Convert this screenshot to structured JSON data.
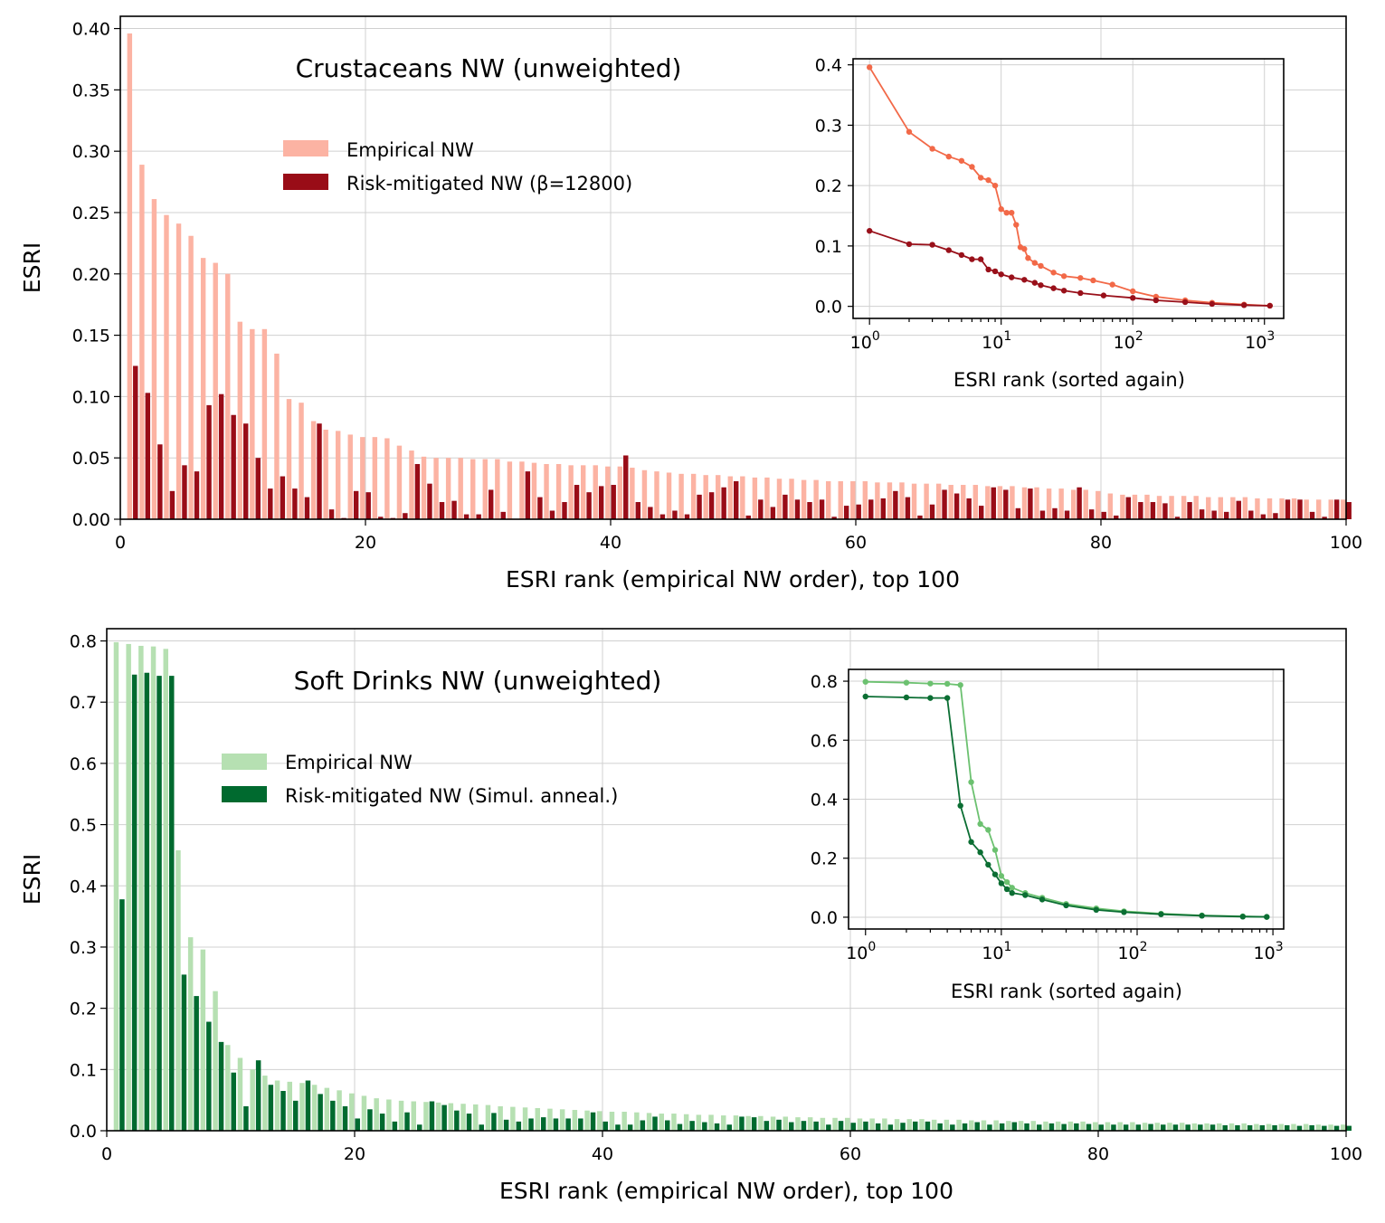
{
  "chart_data": [
    {
      "type": "bar",
      "title": "Crustaceans NW (unweighted)",
      "xlabel": "ESRI rank (empirical NW order), top 100",
      "ylabel": "ESRI",
      "xlim": [
        0,
        100
      ],
      "ylim": [
        0,
        0.41
      ],
      "xticks": [
        "0",
        "20",
        "40",
        "60",
        "80",
        "100"
      ],
      "yticks": [
        "0.00",
        "0.05",
        "0.10",
        "0.15",
        "0.20",
        "0.25",
        "0.30",
        "0.35",
        "0.40"
      ],
      "grid": true,
      "legend_position": "upper-left",
      "colors": {
        "empirical": "#fcb3a3",
        "mitigated": "#990c17",
        "inset_empirical": "#f26948",
        "inset_mitigated": "#99101a"
      },
      "series": [
        {
          "name": "Empirical NW",
          "values": [
            0.396,
            0.289,
            0.261,
            0.248,
            0.241,
            0.231,
            0.213,
            0.209,
            0.2,
            0.161,
            0.155,
            0.155,
            0.135,
            0.098,
            0.095,
            0.08,
            0.073,
            0.072,
            0.069,
            0.067,
            0.067,
            0.066,
            0.06,
            0.056,
            0.051,
            0.05,
            0.05,
            0.05,
            0.049,
            0.049,
            0.049,
            0.047,
            0.047,
            0.046,
            0.045,
            0.045,
            0.044,
            0.044,
            0.044,
            0.043,
            0.043,
            0.042,
            0.04,
            0.039,
            0.038,
            0.037,
            0.037,
            0.036,
            0.036,
            0.035,
            0.035,
            0.034,
            0.034,
            0.033,
            0.033,
            0.032,
            0.032,
            0.031,
            0.031,
            0.031,
            0.031,
            0.03,
            0.03,
            0.03,
            0.029,
            0.029,
            0.029,
            0.028,
            0.028,
            0.028,
            0.027,
            0.027,
            0.027,
            0.026,
            0.026,
            0.025,
            0.025,
            0.024,
            0.024,
            0.023,
            0.021,
            0.02,
            0.02,
            0.02,
            0.019,
            0.019,
            0.019,
            0.019,
            0.018,
            0.018,
            0.018,
            0.018,
            0.017,
            0.017,
            0.017,
            0.017,
            0.016,
            0.016,
            0.016,
            0.016
          ]
        },
        {
          "name": "Risk-mitigated NW (β=12800)",
          "values": [
            0.125,
            0.103,
            0.061,
            0.023,
            0.044,
            0.039,
            0.093,
            0.102,
            0.085,
            0.078,
            0.05,
            0.025,
            0.035,
            0.025,
            0.018,
            0.078,
            0.008,
            0.001,
            0.023,
            0.022,
            0.002,
            0.001,
            0.005,
            0.045,
            0.029,
            0.014,
            0.015,
            0.004,
            0.004,
            0.024,
            0.006,
            0.0,
            0.039,
            0.018,
            0.007,
            0.014,
            0.028,
            0.022,
            0.027,
            0.028,
            0.052,
            0.014,
            0.01,
            0.004,
            0.007,
            0.004,
            0.02,
            0.022,
            0.026,
            0.031,
            0.003,
            0.016,
            0.01,
            0.02,
            0.016,
            0.014,
            0.016,
            0.002,
            0.011,
            0.012,
            0.016,
            0.017,
            0.023,
            0.018,
            0.003,
            0.012,
            0.024,
            0.021,
            0.017,
            0.011,
            0.026,
            0.024,
            0.009,
            0.025,
            0.007,
            0.009,
            0.007,
            0.026,
            0.008,
            0.006,
            0.003,
            0.018,
            0.014,
            0.014,
            0.013,
            0.002,
            0.014,
            0.008,
            0.007,
            0.006,
            0.015,
            0.007,
            0.004,
            0.005,
            0.016,
            0.016,
            0.006,
            0.002,
            0.016,
            0.014
          ]
        }
      ],
      "inset": {
        "xlabel": "ESRI rank (sorted again)",
        "xscale": "log",
        "xlim": [
          0.75,
          1400
        ],
        "ylim": [
          -0.02,
          0.41
        ],
        "yticks": [
          "0.0",
          "0.1",
          "0.2",
          "0.3",
          "0.4"
        ],
        "xticks": [
          "10^0",
          "10^1",
          "10^2",
          "10^3"
        ],
        "empirical_points": [
          [
            1,
            0.396
          ],
          [
            2,
            0.289
          ],
          [
            3,
            0.261
          ],
          [
            4,
            0.248
          ],
          [
            5,
            0.241
          ],
          [
            6,
            0.231
          ],
          [
            7,
            0.213
          ],
          [
            8,
            0.209
          ],
          [
            9,
            0.2
          ],
          [
            10,
            0.161
          ],
          [
            11,
            0.155
          ],
          [
            12,
            0.155
          ],
          [
            13,
            0.135
          ],
          [
            14,
            0.098
          ],
          [
            15,
            0.095
          ],
          [
            16,
            0.08
          ],
          [
            18,
            0.072
          ],
          [
            20,
            0.067
          ],
          [
            25,
            0.056
          ],
          [
            30,
            0.05
          ],
          [
            40,
            0.047
          ],
          [
            50,
            0.043
          ],
          [
            70,
            0.036
          ],
          [
            100,
            0.025
          ],
          [
            150,
            0.016
          ],
          [
            250,
            0.01
          ],
          [
            400,
            0.006
          ],
          [
            700,
            0.003
          ],
          [
            1100,
            0.001
          ]
        ],
        "mitigated_points": [
          [
            1,
            0.125
          ],
          [
            2,
            0.103
          ],
          [
            3,
            0.102
          ],
          [
            4,
            0.093
          ],
          [
            5,
            0.085
          ],
          [
            6,
            0.078
          ],
          [
            7,
            0.078
          ],
          [
            8,
            0.061
          ],
          [
            9,
            0.058
          ],
          [
            10,
            0.053
          ],
          [
            12,
            0.048
          ],
          [
            15,
            0.044
          ],
          [
            18,
            0.039
          ],
          [
            20,
            0.035
          ],
          [
            25,
            0.03
          ],
          [
            30,
            0.026
          ],
          [
            40,
            0.022
          ],
          [
            60,
            0.018
          ],
          [
            100,
            0.014
          ],
          [
            150,
            0.01
          ],
          [
            250,
            0.007
          ],
          [
            400,
            0.004
          ],
          [
            700,
            0.002
          ],
          [
            1100,
            0.001
          ]
        ]
      }
    },
    {
      "type": "bar",
      "title": "Soft Drinks NW (unweighted)",
      "xlabel": "ESRI rank (empirical NW order), top 100",
      "ylabel": "ESRI",
      "xlim": [
        0,
        100
      ],
      "ylim": [
        0,
        0.82
      ],
      "xticks": [
        "0",
        "20",
        "40",
        "60",
        "80",
        "100"
      ],
      "yticks": [
        "0.0",
        "0.1",
        "0.2",
        "0.3",
        "0.4",
        "0.5",
        "0.6",
        "0.7",
        "0.8"
      ],
      "grid": true,
      "legend_position": "upper-left",
      "colors": {
        "empirical": "#b6e0b2",
        "mitigated": "#006a2f",
        "inset_empirical": "#6cc170",
        "inset_mitigated": "#0b6e33"
      },
      "series": [
        {
          "name": "Empirical NW",
          "values": [
            0.798,
            0.795,
            0.792,
            0.791,
            0.787,
            0.458,
            0.316,
            0.296,
            0.228,
            0.14,
            0.119,
            0.1,
            0.09,
            0.082,
            0.08,
            0.078,
            0.075,
            0.07,
            0.066,
            0.061,
            0.057,
            0.053,
            0.051,
            0.049,
            0.048,
            0.047,
            0.046,
            0.045,
            0.044,
            0.043,
            0.042,
            0.04,
            0.039,
            0.038,
            0.037,
            0.036,
            0.035,
            0.034,
            0.033,
            0.032,
            0.031,
            0.031,
            0.03,
            0.029,
            0.028,
            0.028,
            0.027,
            0.026,
            0.026,
            0.025,
            0.025,
            0.024,
            0.024,
            0.023,
            0.023,
            0.022,
            0.022,
            0.021,
            0.021,
            0.021,
            0.02,
            0.02,
            0.02,
            0.019,
            0.019,
            0.019,
            0.018,
            0.018,
            0.018,
            0.017,
            0.017,
            0.017,
            0.016,
            0.016,
            0.016,
            0.015,
            0.015,
            0.015,
            0.015,
            0.014,
            0.014,
            0.014,
            0.014,
            0.013,
            0.013,
            0.013,
            0.013,
            0.012,
            0.012,
            0.012,
            0.012,
            0.012,
            0.011,
            0.011,
            0.011,
            0.011,
            0.011,
            0.01,
            0.01,
            0.01
          ]
        },
        {
          "name": "Risk-mitigated NW (Simul. anneal.)",
          "values": [
            0.378,
            0.745,
            0.748,
            0.743,
            0.743,
            0.255,
            0.22,
            0.178,
            0.145,
            0.095,
            0.04,
            0.115,
            0.075,
            0.065,
            0.049,
            0.082,
            0.06,
            0.049,
            0.04,
            0.02,
            0.035,
            0.028,
            0.015,
            0.03,
            0.01,
            0.048,
            0.042,
            0.033,
            0.028,
            0.01,
            0.029,
            0.018,
            0.015,
            0.02,
            0.022,
            0.02,
            0.02,
            0.02,
            0.03,
            0.015,
            0.01,
            0.01,
            0.017,
            0.023,
            0.017,
            0.011,
            0.016,
            0.014,
            0.012,
            0.01,
            0.023,
            0.022,
            0.016,
            0.018,
            0.014,
            0.016,
            0.015,
            0.01,
            0.016,
            0.013,
            0.015,
            0.012,
            0.01,
            0.013,
            0.015,
            0.015,
            0.012,
            0.01,
            0.012,
            0.014,
            0.01,
            0.012,
            0.014,
            0.012,
            0.01,
            0.012,
            0.011,
            0.012,
            0.011,
            0.01,
            0.01,
            0.01,
            0.01,
            0.011,
            0.01,
            0.01,
            0.01,
            0.01,
            0.01,
            0.009,
            0.009,
            0.009,
            0.009,
            0.009,
            0.009,
            0.008,
            0.009,
            0.008,
            0.008,
            0.008
          ]
        }
      ],
      "inset": {
        "xlabel": "ESRI rank (sorted again)",
        "xscale": "log",
        "xlim": [
          0.75,
          1200
        ],
        "ylim": [
          -0.04,
          0.84
        ],
        "yticks": [
          "0.0",
          "0.2",
          "0.4",
          "0.6",
          "0.8"
        ],
        "xticks": [
          "10^0",
          "10^1",
          "10^2",
          "10^3"
        ],
        "empirical_points": [
          [
            1,
            0.798
          ],
          [
            2,
            0.795
          ],
          [
            3,
            0.792
          ],
          [
            4,
            0.791
          ],
          [
            5,
            0.787
          ],
          [
            6,
            0.458
          ],
          [
            7,
            0.316
          ],
          [
            8,
            0.296
          ],
          [
            9,
            0.228
          ],
          [
            10,
            0.14
          ],
          [
            11,
            0.119
          ],
          [
            12,
            0.1
          ],
          [
            15,
            0.082
          ],
          [
            20,
            0.066
          ],
          [
            30,
            0.045
          ],
          [
            50,
            0.03
          ],
          [
            80,
            0.02
          ],
          [
            150,
            0.012
          ],
          [
            300,
            0.006
          ],
          [
            600,
            0.003
          ],
          [
            900,
            0.001
          ]
        ],
        "mitigated_points": [
          [
            1,
            0.748
          ],
          [
            2,
            0.745
          ],
          [
            3,
            0.743
          ],
          [
            4,
            0.743
          ],
          [
            5,
            0.378
          ],
          [
            6,
            0.255
          ],
          [
            7,
            0.22
          ],
          [
            8,
            0.178
          ],
          [
            9,
            0.145
          ],
          [
            10,
            0.115
          ],
          [
            11,
            0.095
          ],
          [
            12,
            0.082
          ],
          [
            15,
            0.075
          ],
          [
            20,
            0.06
          ],
          [
            30,
            0.04
          ],
          [
            50,
            0.025
          ],
          [
            80,
            0.017
          ],
          [
            150,
            0.01
          ],
          [
            300,
            0.005
          ],
          [
            600,
            0.002
          ],
          [
            900,
            0.001
          ]
        ]
      }
    }
  ]
}
